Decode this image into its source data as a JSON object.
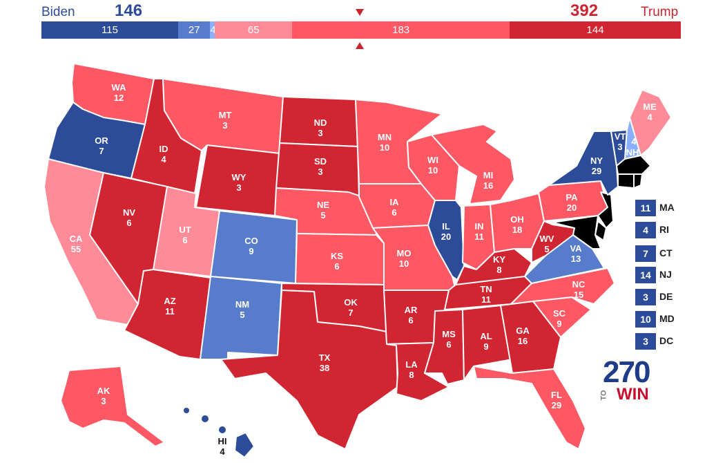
{
  "colors": {
    "safe_d": "#2c4c9a",
    "likely_d": "#577ccc",
    "lean_d": "#8aafff",
    "lean_r": "#ff8b98",
    "likely_r": "#ff5865",
    "safe_r": "#d22532",
    "tossup": "#c9c299"
  },
  "header": {
    "biden_name": "Biden",
    "biden_total": "146",
    "trump_total": "392",
    "trump_name": "Trump"
  },
  "bar": {
    "segments": [
      {
        "value": "115",
        "color": "#2c4c9a"
      },
      {
        "value": "27",
        "color": "#577ccc"
      },
      {
        "value": "4",
        "color": "#8aafff"
      },
      {
        "value": "65",
        "color": "#ff8b98"
      },
      {
        "value": "183",
        "color": "#ff5865"
      },
      {
        "value": "144",
        "color": "#d22532"
      }
    ]
  },
  "states": {
    "WA": {
      "abbr": "WA",
      "ev": "12",
      "rating": "likely_r"
    },
    "OR": {
      "abbr": "OR",
      "ev": "7",
      "rating": "safe_d"
    },
    "CA": {
      "abbr": "CA",
      "ev": "55",
      "rating": "lean_r"
    },
    "ID": {
      "abbr": "ID",
      "ev": "4",
      "rating": "safe_r"
    },
    "NV": {
      "abbr": "NV",
      "ev": "6",
      "rating": "safe_r"
    },
    "MT": {
      "abbr": "MT",
      "ev": "3",
      "rating": "likely_r"
    },
    "WY": {
      "abbr": "WY",
      "ev": "3",
      "rating": "safe_r"
    },
    "UT": {
      "abbr": "UT",
      "ev": "6",
      "rating": "lean_r"
    },
    "AZ": {
      "abbr": "AZ",
      "ev": "11",
      "rating": "safe_r"
    },
    "CO": {
      "abbr": "CO",
      "ev": "9",
      "rating": "likely_d"
    },
    "NM": {
      "abbr": "NM",
      "ev": "5",
      "rating": "likely_d"
    },
    "ND": {
      "abbr": "ND",
      "ev": "3",
      "rating": "safe_r"
    },
    "SD": {
      "abbr": "SD",
      "ev": "3",
      "rating": "safe_r"
    },
    "NE": {
      "abbr": "NE",
      "ev": "5",
      "rating": "likely_r"
    },
    "KS": {
      "abbr": "KS",
      "ev": "6",
      "rating": "likely_r"
    },
    "OK": {
      "abbr": "OK",
      "ev": "7",
      "rating": "safe_r"
    },
    "TX": {
      "abbr": "TX",
      "ev": "38",
      "rating": "safe_r"
    },
    "MN": {
      "abbr": "MN",
      "ev": "10",
      "rating": "likely_r"
    },
    "IA": {
      "abbr": "IA",
      "ev": "6",
      "rating": "likely_r"
    },
    "MO": {
      "abbr": "MO",
      "ev": "10",
      "rating": "likely_r"
    },
    "AR": {
      "abbr": "AR",
      "ev": "6",
      "rating": "safe_r"
    },
    "LA": {
      "abbr": "LA",
      "ev": "8",
      "rating": "safe_r"
    },
    "WI": {
      "abbr": "WI",
      "ev": "10",
      "rating": "likely_r"
    },
    "IL": {
      "abbr": "IL",
      "ev": "20",
      "rating": "safe_d"
    },
    "MI": {
      "abbr": "MI",
      "ev": "16",
      "rating": "likely_r"
    },
    "IN": {
      "abbr": "IN",
      "ev": "11",
      "rating": "likely_r"
    },
    "OH": {
      "abbr": "OH",
      "ev": "18",
      "rating": "likely_r"
    },
    "KY": {
      "abbr": "KY",
      "ev": "8",
      "rating": "safe_r"
    },
    "TN": {
      "abbr": "TN",
      "ev": "11",
      "rating": "safe_r"
    },
    "MS": {
      "abbr": "MS",
      "ev": "6",
      "rating": "safe_r"
    },
    "AL": {
      "abbr": "AL",
      "ev": "9",
      "rating": "safe_r"
    },
    "GA": {
      "abbr": "GA",
      "ev": "16",
      "rating": "safe_r"
    },
    "FL": {
      "abbr": "FL",
      "ev": "29",
      "rating": "likely_r"
    },
    "SC": {
      "abbr": "SC",
      "ev": "9",
      "rating": "likely_r"
    },
    "NC": {
      "abbr": "NC",
      "ev": "15",
      "rating": "likely_r"
    },
    "VA": {
      "abbr": "VA",
      "ev": "13",
      "rating": "likely_d"
    },
    "WV": {
      "abbr": "WV",
      "ev": "5",
      "rating": "safe_r"
    },
    "PA": {
      "abbr": "PA",
      "ev": "20",
      "rating": "likely_r"
    },
    "NY": {
      "abbr": "NY",
      "ev": "29",
      "rating": "safe_d"
    },
    "VT": {
      "abbr": "VT",
      "ev": "3",
      "rating": "safe_d"
    },
    "NH": {
      "abbr": "NH",
      "ev": "4",
      "rating": "lean_d"
    },
    "ME": {
      "abbr": "ME",
      "ev": "4",
      "rating": "lean_r"
    },
    "AK": {
      "abbr": "AK",
      "ev": "3",
      "rating": "likely_r"
    },
    "HI": {
      "abbr": "HI",
      "ev": "4",
      "rating": "safe_d"
    }
  },
  "small_states": [
    {
      "abbr": "MA",
      "ev": "11",
      "rating": "safe_d"
    },
    {
      "abbr": "RI",
      "ev": "4",
      "rating": "safe_d"
    },
    {
      "abbr": "CT",
      "ev": "7",
      "rating": "safe_d"
    },
    {
      "abbr": "NJ",
      "ev": "14",
      "rating": "safe_d"
    },
    {
      "abbr": "DE",
      "ev": "3",
      "rating": "safe_d"
    },
    {
      "abbr": "MD",
      "ev": "10",
      "rating": "safe_d"
    },
    {
      "abbr": "DC",
      "ev": "3",
      "rating": "safe_d"
    }
  ],
  "logo": {
    "number": "270",
    "to": "TO",
    "win": "WIN"
  }
}
